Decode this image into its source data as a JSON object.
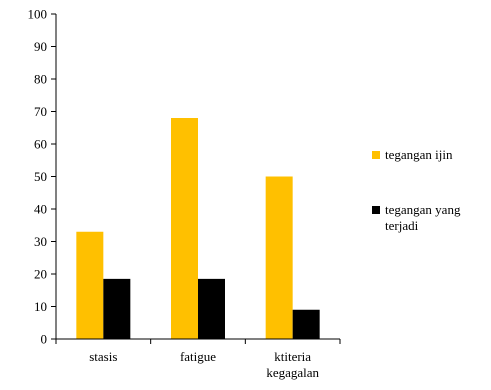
{
  "chart_data": {
    "type": "bar",
    "categories": [
      [
        "stasis"
      ],
      [
        "fatigue"
      ],
      [
        "ktiteria",
        "kegagalan"
      ]
    ],
    "series": [
      {
        "name": [
          "tegangan ijin"
        ],
        "values": [
          33,
          68,
          50
        ],
        "color": "#FFC000"
      },
      {
        "name": [
          "tegangan yang",
          "terjadi"
        ],
        "values": [
          18.5,
          18.5,
          9
        ],
        "color": "#000000"
      }
    ],
    "y_ticks": [
      "0",
      "10",
      "20",
      "30",
      "40",
      "50",
      "60",
      "70",
      "80",
      "90",
      "100"
    ],
    "ylim": [
      0,
      100
    ],
    "grid": false,
    "legend_position": "right"
  }
}
